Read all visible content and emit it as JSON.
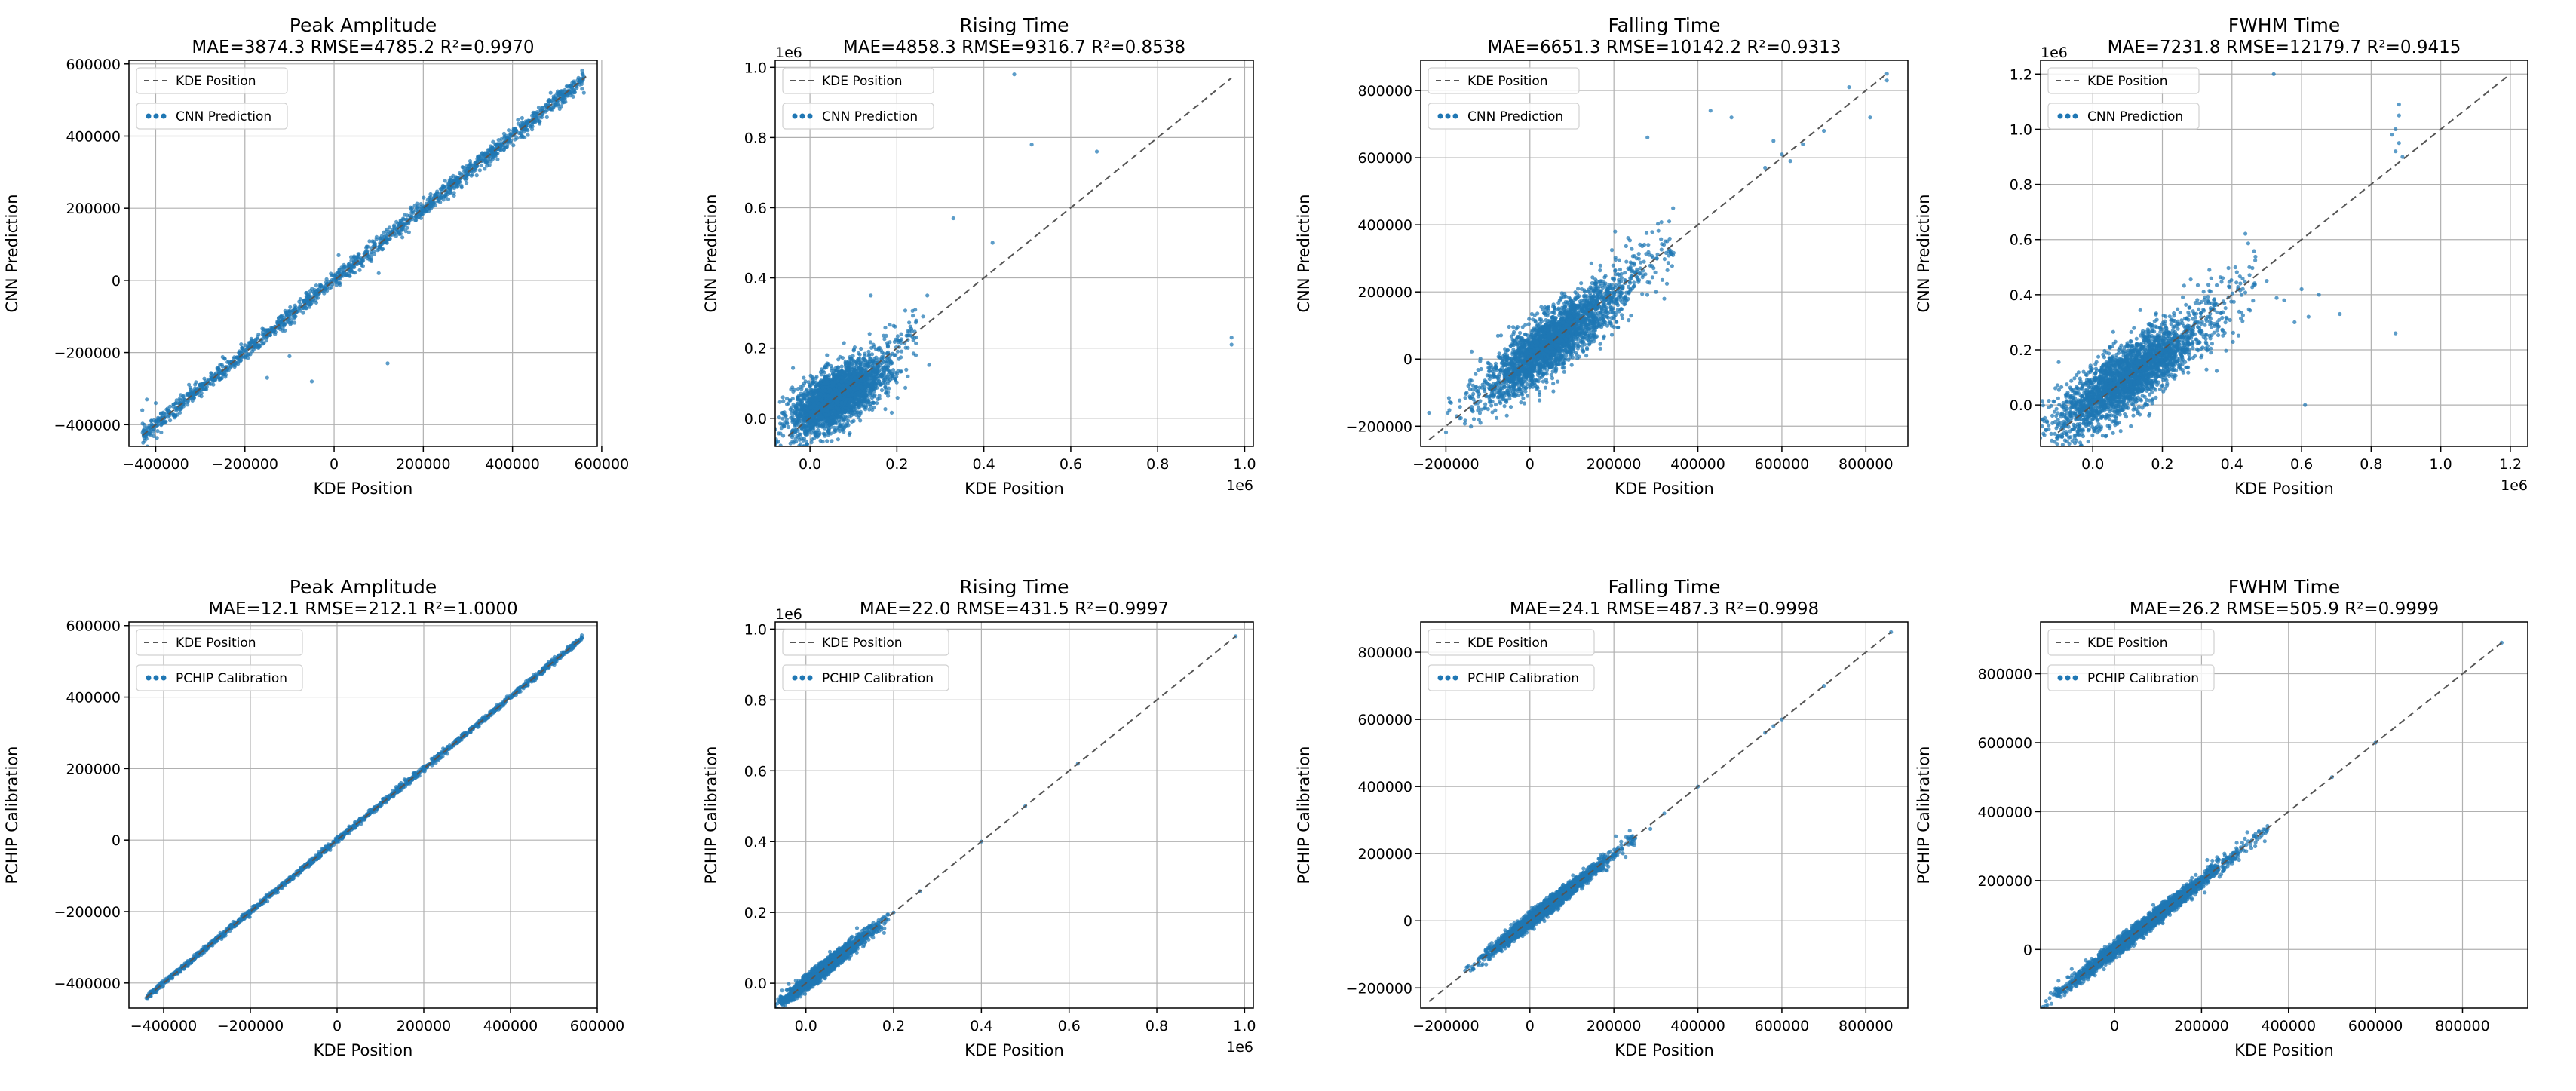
{
  "figure": {
    "rows": [
      {
        "row_label": "CNN"
      },
      {
        "row_label": "PCHIP"
      }
    ]
  },
  "chart_data": [
    {
      "type": "scatter",
      "title": "Peak Amplitude",
      "subtitle": "MAE=3874.3  RMSE=4785.2  R²=0.9970",
      "xlabel": "KDE Position",
      "ylabel": "CNN Prediction",
      "xlim": [
        -460000,
        590000
      ],
      "ylim": [
        -460000,
        610000
      ],
      "xticks": [
        -400000,
        -200000,
        0,
        200000,
        400000,
        600000
      ],
      "xtick_labels": [
        "−400000",
        "−200000",
        "0",
        "200000",
        "400000",
        "600000"
      ],
      "yticks": [
        -400000,
        -200000,
        0,
        200000,
        400000,
        600000
      ],
      "ytick_labels": [
        "−400000",
        "−200000",
        "0",
        "200000",
        "400000",
        "600000"
      ],
      "x_offset_label": "",
      "y_offset_label": "",
      "grid": true,
      "legend_position": "top-left",
      "colors": {
        "points": "#1f77b4",
        "reference": "#555555"
      },
      "series": [
        {
          "name": "KDE Position",
          "kind": "reference-line",
          "x": [
            -430000,
            565000
          ],
          "y": [
            -430000,
            565000
          ]
        },
        {
          "name": "CNN Prediction",
          "kind": "scatter",
          "spread": 0.012,
          "cluster": [
            -430000,
            560000
          ],
          "outliers": [
            [
              -430000,
              -360000
            ],
            [
              -420000,
              -330000
            ],
            [
              -400000,
              -340000
            ],
            [
              -410000,
              -390000
            ],
            [
              -420000,
              -420000
            ],
            [
              -150000,
              -270000
            ],
            [
              -100000,
              -210000
            ],
            [
              -50000,
              -280000
            ],
            [
              50000,
              50000
            ],
            [
              100000,
              20000
            ],
            [
              120000,
              -230000
            ],
            [
              -25000,
              -30000
            ],
            [
              10000,
              70000
            ],
            [
              550000,
              550000
            ],
            [
              560000,
              520000
            ]
          ]
        }
      ]
    },
    {
      "type": "scatter",
      "title": "Rising Time",
      "subtitle": "MAE=4858.3  RMSE=9316.7  R²=0.8538",
      "xlabel": "KDE Position",
      "ylabel": "CNN Prediction",
      "xlim": [
        -0.08,
        1.02
      ],
      "ylim": [
        -0.08,
        1.02
      ],
      "xticks": [
        0.0,
        0.2,
        0.4,
        0.6,
        0.8,
        1.0
      ],
      "xtick_labels": [
        "0.0",
        "0.2",
        "0.4",
        "0.6",
        "0.8",
        "1.0"
      ],
      "yticks": [
        0.0,
        0.2,
        0.4,
        0.6,
        0.8,
        1.0
      ],
      "ytick_labels": [
        "0.0",
        "0.2",
        "0.4",
        "0.6",
        "0.8",
        "1.0"
      ],
      "x_offset_label": "1e6",
      "y_offset_label": "1e6",
      "grid": true,
      "legend_position": "top-left",
      "colors": {
        "points": "#1f77b4",
        "reference": "#555555"
      },
      "series": [
        {
          "name": "KDE Position",
          "kind": "reference-line",
          "x": [
            -0.05,
            0.97
          ],
          "y": [
            -0.05,
            0.97
          ]
        },
        {
          "name": "CNN Prediction",
          "kind": "blob",
          "center": [
            0.06,
            0.06
          ],
          "spread": [
            0.05,
            0.05
          ],
          "corr": 0.6,
          "outliers": [
            [
              0.47,
              0.98
            ],
            [
              0.51,
              0.78
            ],
            [
              0.66,
              0.76
            ],
            [
              0.33,
              0.57
            ],
            [
              0.42,
              0.5
            ],
            [
              0.27,
              0.35
            ],
            [
              0.26,
              0.29
            ],
            [
              0.21,
              0.24
            ],
            [
              0.97,
              0.23
            ],
            [
              0.97,
              0.21
            ],
            [
              0.14,
              0.35
            ],
            [
              0.18,
              0.15
            ]
          ]
        }
      ]
    },
    {
      "type": "scatter",
      "title": "Falling Time",
      "subtitle": "MAE=6651.3  RMSE=10142.2  R²=0.9313",
      "xlabel": "KDE Position",
      "ylabel": "CNN Prediction",
      "xlim": [
        -260000,
        900000
      ],
      "ylim": [
        -260000,
        890000
      ],
      "xticks": [
        -200000,
        0,
        200000,
        400000,
        600000,
        800000
      ],
      "xtick_labels": [
        "−200000",
        "0",
        "200000",
        "400000",
        "600000",
        "800000"
      ],
      "yticks": [
        -200000,
        0,
        200000,
        400000,
        600000,
        800000
      ],
      "ytick_labels": [
        "−200000",
        "0",
        "200000",
        "400000",
        "600000",
        "800000"
      ],
      "x_offset_label": "",
      "y_offset_label": "",
      "grid": true,
      "legend_position": "top-left",
      "colors": {
        "points": "#1f77b4",
        "reference": "#555555"
      },
      "series": [
        {
          "name": "KDE Position",
          "kind": "reference-line",
          "x": [
            -240000,
            850000
          ],
          "y": [
            -240000,
            850000
          ]
        },
        {
          "name": "CNN Prediction",
          "kind": "blob",
          "center": [
            50000,
            50000
          ],
          "spread": [
            80000,
            85000
          ],
          "corr": 0.85,
          "outliers": [
            [
              -240000,
              -160000
            ],
            [
              430000,
              740000
            ],
            [
              480000,
              720000
            ],
            [
              560000,
              570000
            ],
            [
              600000,
              610000
            ],
            [
              650000,
              640000
            ],
            [
              700000,
              680000
            ],
            [
              760000,
              810000
            ],
            [
              850000,
              830000
            ],
            [
              810000,
              720000
            ],
            [
              850000,
              850000
            ],
            [
              580000,
              650000
            ],
            [
              620000,
              590000
            ],
            [
              280000,
              660000
            ],
            [
              300000,
              200000
            ],
            [
              320000,
              180000
            ]
          ]
        }
      ]
    },
    {
      "type": "scatter",
      "title": "FWHM Time",
      "subtitle": "MAE=7231.8  RMSE=12179.7  R²=0.9415",
      "xlabel": "KDE Position",
      "ylabel": "CNN Prediction",
      "xlim": [
        -0.15,
        1.25
      ],
      "ylim": [
        -0.15,
        1.25
      ],
      "xticks": [
        0.0,
        0.2,
        0.4,
        0.6,
        0.8,
        1.0,
        1.2
      ],
      "xtick_labels": [
        "0.0",
        "0.2",
        "0.4",
        "0.6",
        "0.8",
        "1.0",
        "1.2"
      ],
      "yticks": [
        0.0,
        0.2,
        0.4,
        0.6,
        0.8,
        1.0,
        1.2
      ],
      "ytick_labels": [
        "0.0",
        "0.2",
        "0.4",
        "0.6",
        "0.8",
        "1.0",
        "1.2"
      ],
      "x_offset_label": "1e6",
      "y_offset_label": "1e6",
      "grid": true,
      "legend_position": "top-left",
      "colors": {
        "points": "#1f77b4",
        "reference": "#555555"
      },
      "series": [
        {
          "name": "KDE Position",
          "kind": "reference-line",
          "x": [
            -0.1,
            1.2
          ],
          "y": [
            -0.1,
            1.2
          ]
        },
        {
          "name": "CNN Prediction",
          "kind": "blob",
          "center": [
            0.1,
            0.1
          ],
          "spread": [
            0.1,
            0.1
          ],
          "corr": 0.8,
          "outliers": [
            [
              0.52,
              1.2
            ],
            [
              0.88,
              1.09
            ],
            [
              0.88,
              1.05
            ],
            [
              0.87,
              1.0
            ],
            [
              0.88,
              0.95
            ],
            [
              0.87,
              0.92
            ],
            [
              0.86,
              0.98
            ],
            [
              0.89,
              0.9
            ],
            [
              0.87,
              0.26
            ],
            [
              0.61,
              0.0
            ],
            [
              0.71,
              0.33
            ],
            [
              0.6,
              0.42
            ],
            [
              0.55,
              0.38
            ],
            [
              0.5,
              0.45
            ],
            [
              0.45,
              0.5
            ],
            [
              0.62,
              0.32
            ],
            [
              0.58,
              0.3
            ],
            [
              0.65,
              0.4
            ]
          ]
        }
      ]
    },
    {
      "type": "scatter",
      "title": "Peak Amplitude",
      "subtitle": "MAE=12.1  RMSE=212.1  R²=1.0000",
      "xlabel": "KDE Position",
      "ylabel": "PCHIP Calibration",
      "xlim": [
        -480000,
        600000
      ],
      "ylim": [
        -470000,
        610000
      ],
      "xticks": [
        -400000,
        -200000,
        0,
        200000,
        400000,
        600000
      ],
      "xtick_labels": [
        "−400000",
        "−200000",
        "0",
        "200000",
        "400000",
        "600000"
      ],
      "yticks": [
        -400000,
        -200000,
        0,
        200000,
        400000,
        600000
      ],
      "ytick_labels": [
        "−400000",
        "−200000",
        "0",
        "200000",
        "400000",
        "600000"
      ],
      "x_offset_label": "",
      "y_offset_label": "",
      "grid": true,
      "legend_position": "top-left",
      "colors": {
        "points": "#1f77b4",
        "reference": "#555555"
      },
      "series": [
        {
          "name": "KDE Position",
          "kind": "reference-line",
          "x": [
            -440000,
            565000
          ],
          "y": [
            -440000,
            565000
          ]
        },
        {
          "name": "PCHIP Calibration",
          "kind": "scatter",
          "spread": 0.004,
          "cluster": [
            -440000,
            565000
          ],
          "outliers": []
        }
      ]
    },
    {
      "type": "scatter",
      "title": "Rising Time",
      "subtitle": "MAE=22.0  RMSE=431.5  R²=0.9997",
      "xlabel": "KDE Position",
      "ylabel": "PCHIP Calibration",
      "xlim": [
        -0.07,
        1.02
      ],
      "ylim": [
        -0.07,
        1.02
      ],
      "xticks": [
        0.0,
        0.2,
        0.4,
        0.6,
        0.8,
        1.0
      ],
      "xtick_labels": [
        "0.0",
        "0.2",
        "0.4",
        "0.6",
        "0.8",
        "1.0"
      ],
      "yticks": [
        0.0,
        0.2,
        0.4,
        0.6,
        0.8,
        1.0
      ],
      "ytick_labels": [
        "0.0",
        "0.2",
        "0.4",
        "0.6",
        "0.8",
        "1.0"
      ],
      "x_offset_label": "1e6",
      "y_offset_label": "1e6",
      "grid": true,
      "legend_position": "top-left",
      "colors": {
        "points": "#1f77b4",
        "reference": "#555555"
      },
      "series": [
        {
          "name": "KDE Position",
          "kind": "reference-line",
          "x": [
            -0.03,
            0.98
          ],
          "y": [
            -0.03,
            0.98
          ]
        },
        {
          "name": "PCHIP Calibration",
          "kind": "blob",
          "center": [
            0.04,
            0.04
          ],
          "spread": [
            0.04,
            0.04
          ],
          "corr": 0.97,
          "outliers": [
            [
              0.98,
              0.98
            ],
            [
              0.62,
              0.62
            ],
            [
              0.5,
              0.5
            ],
            [
              0.4,
              0.4
            ],
            [
              0.26,
              0.26
            ],
            [
              0.2,
              0.2
            ]
          ]
        }
      ]
    },
    {
      "type": "scatter",
      "title": "Falling Time",
      "subtitle": "MAE=24.1  RMSE=487.3  R²=0.9998",
      "xlabel": "KDE Position",
      "ylabel": "PCHIP Calibration",
      "xlim": [
        -260000,
        900000
      ],
      "ylim": [
        -260000,
        890000
      ],
      "xticks": [
        -200000,
        0,
        200000,
        400000,
        600000,
        800000
      ],
      "xtick_labels": [
        "−200000",
        "0",
        "200000",
        "400000",
        "600000",
        "800000"
      ],
      "yticks": [
        -200000,
        0,
        200000,
        400000,
        600000,
        800000
      ],
      "ytick_labels": [
        "−200000",
        "0",
        "200000",
        "400000",
        "600000",
        "800000"
      ],
      "x_offset_label": "",
      "y_offset_label": "",
      "grid": true,
      "legend_position": "top-left",
      "colors": {
        "points": "#1f77b4",
        "reference": "#555555"
      },
      "series": [
        {
          "name": "KDE Position",
          "kind": "reference-line",
          "x": [
            -240000,
            860000
          ],
          "y": [
            -240000,
            860000
          ]
        },
        {
          "name": "PCHIP Calibration",
          "kind": "blob",
          "center": [
            30000,
            30000
          ],
          "spread": [
            60000,
            60000
          ],
          "corr": 0.985,
          "outliers": [
            [
              860000,
              860000
            ],
            [
              700000,
              700000
            ],
            [
              580000,
              580000
            ],
            [
              600000,
              600000
            ],
            [
              560000,
              560000
            ],
            [
              400000,
              400000
            ],
            [
              320000,
              320000
            ]
          ]
        }
      ]
    },
    {
      "type": "scatter",
      "title": "FWHM Time",
      "subtitle": "MAE=26.2  RMSE=505.9  R²=0.9999",
      "xlabel": "KDE Position",
      "ylabel": "PCHIP Calibration",
      "xlim": [
        -170000,
        950000
      ],
      "ylim": [
        -170000,
        950000
      ],
      "xticks": [
        0,
        200000,
        400000,
        600000,
        800000
      ],
      "xtick_labels": [
        "0",
        "200000",
        "400000",
        "600000",
        "800000"
      ],
      "yticks": [
        0,
        200000,
        400000,
        600000,
        800000
      ],
      "ytick_labels": [
        "0",
        "200000",
        "400000",
        "600000",
        "800000"
      ],
      "x_offset_label": "",
      "y_offset_label": "",
      "grid": true,
      "legend_position": "top-left",
      "colors": {
        "points": "#1f77b4",
        "reference": "#555555"
      },
      "series": [
        {
          "name": "KDE Position",
          "kind": "reference-line",
          "x": [
            -120000,
            890000
          ],
          "y": [
            -120000,
            890000
          ]
        },
        {
          "name": "PCHIP Calibration",
          "kind": "blob",
          "center": [
            60000,
            60000
          ],
          "spread": [
            80000,
            80000
          ],
          "corr": 0.99,
          "outliers": [
            [
              890000,
              890000
            ],
            [
              600000,
              600000
            ],
            [
              500000,
              500000
            ]
          ]
        }
      ]
    }
  ]
}
